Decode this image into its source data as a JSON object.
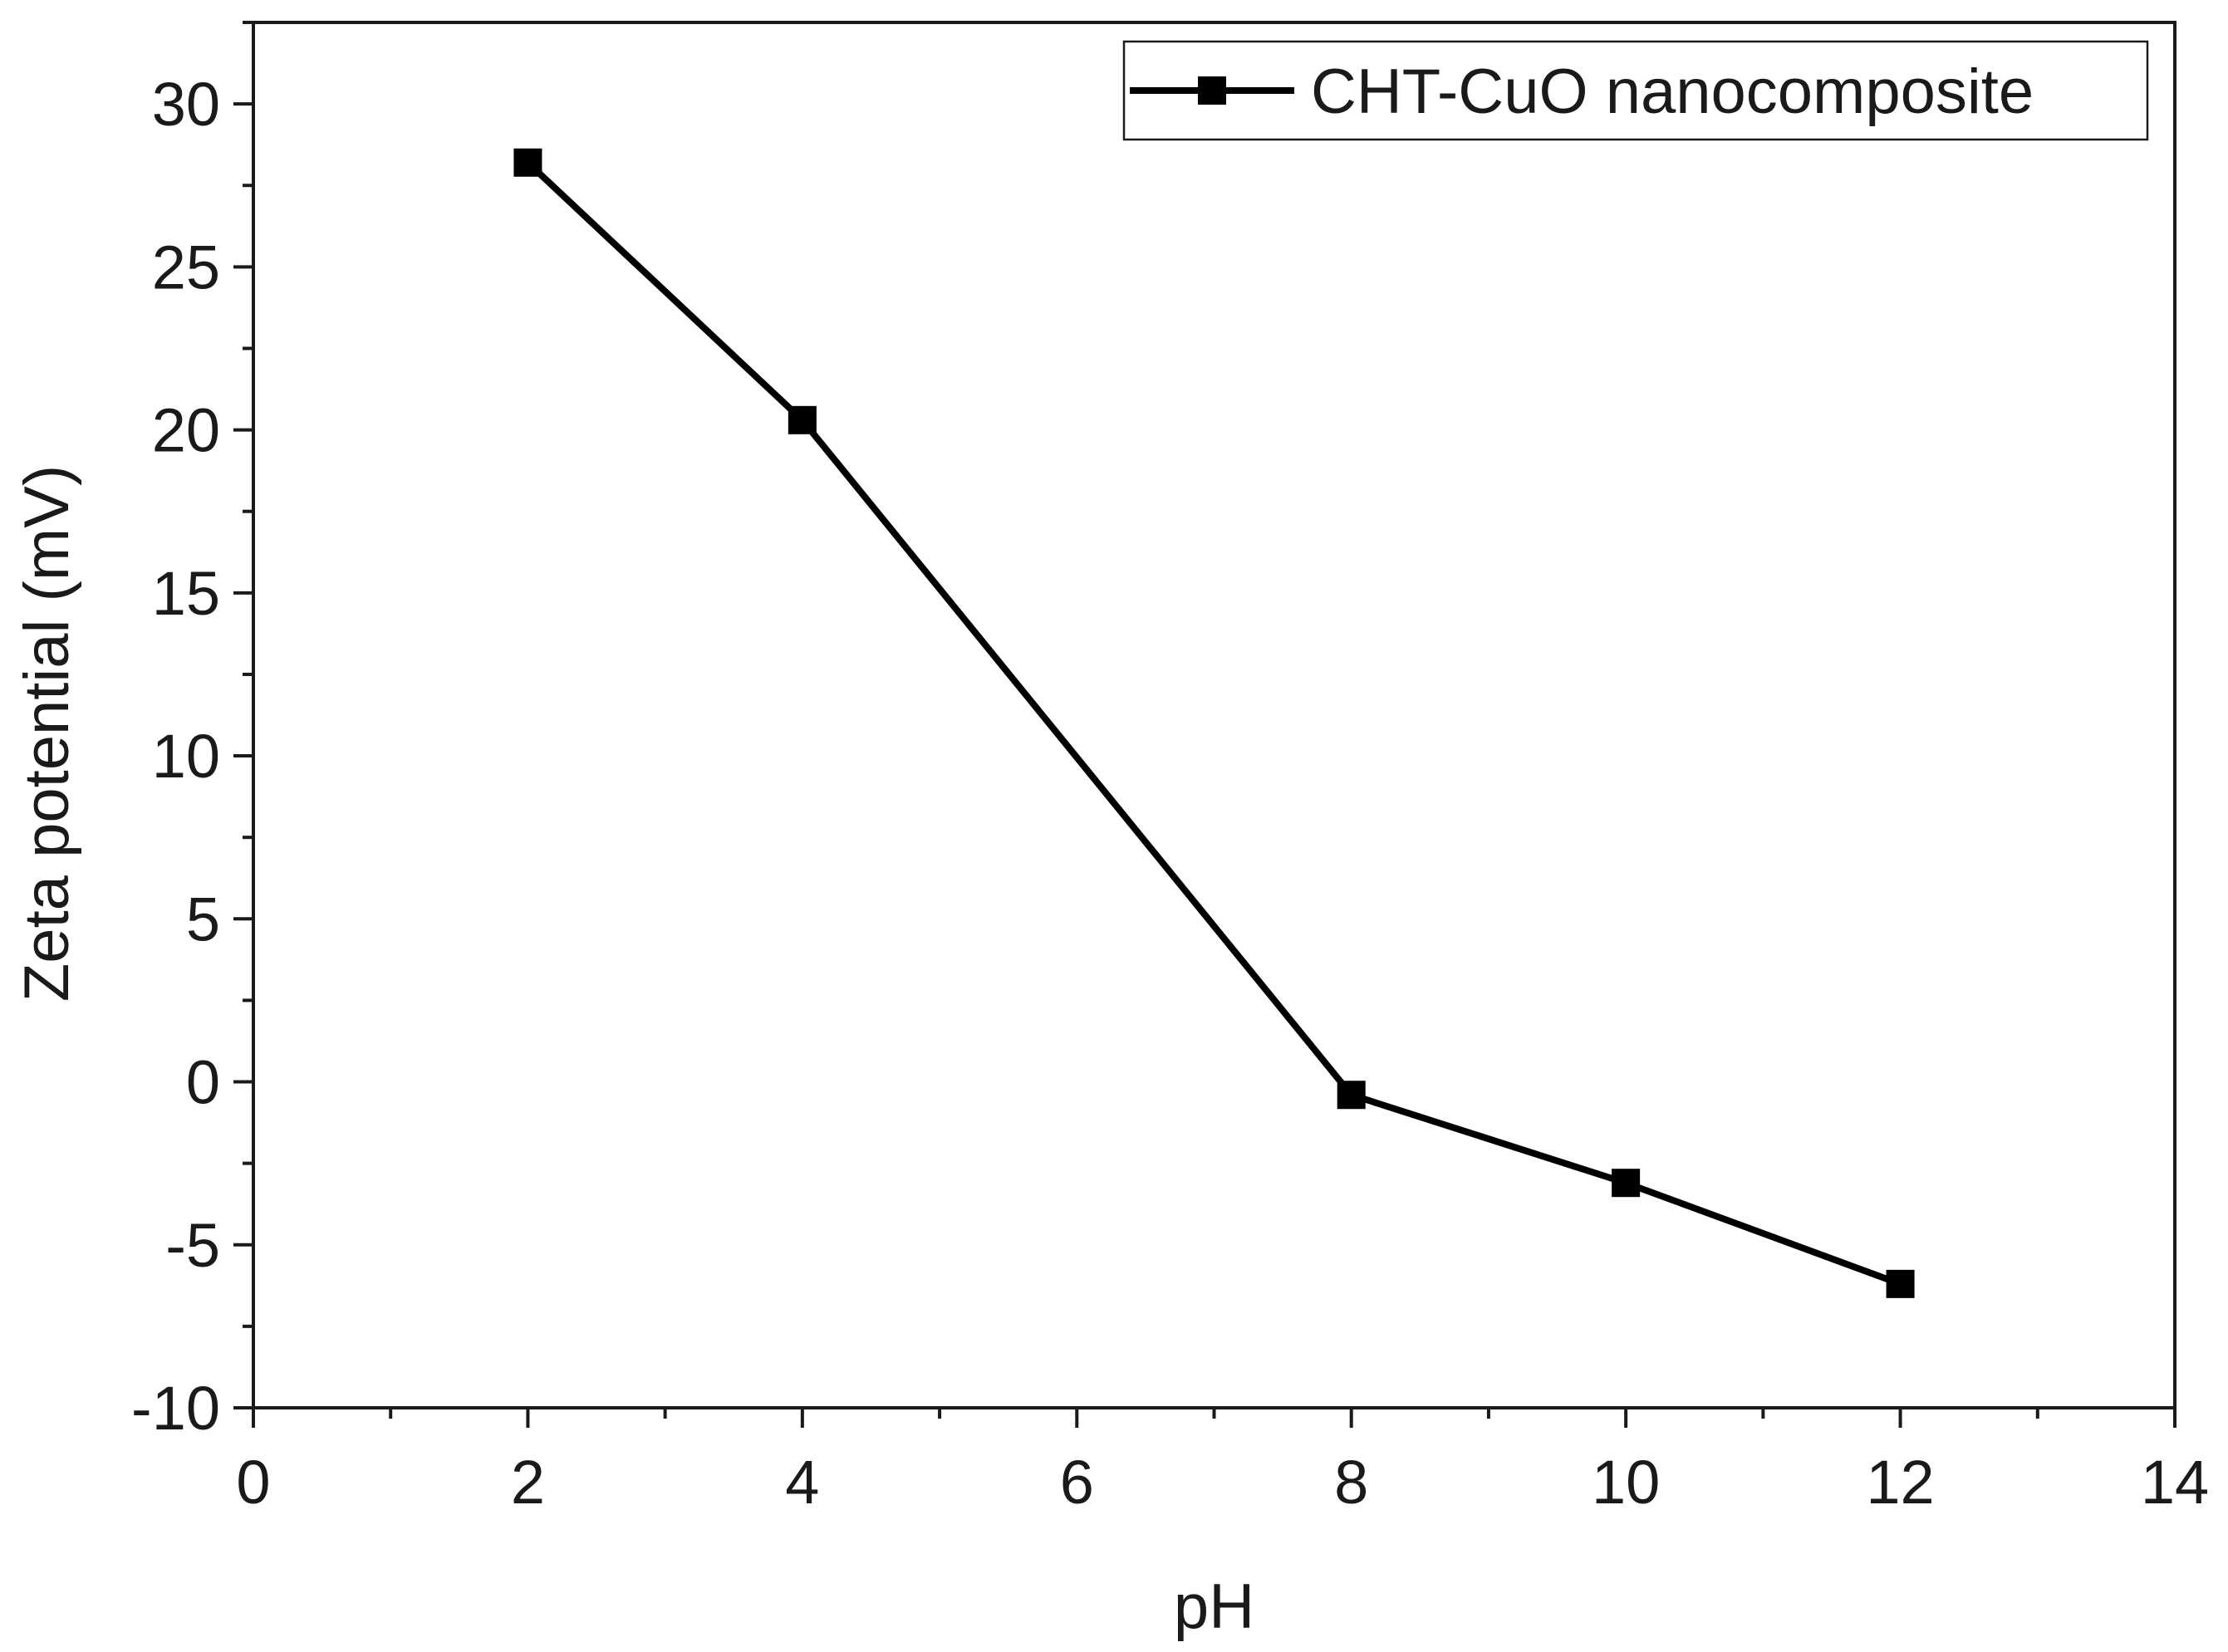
{
  "chart_data": {
    "type": "line",
    "title": "",
    "xlabel": "pH",
    "ylabel": "Zeta potential (mV)",
    "xlim": [
      0,
      14
    ],
    "ylim": [
      -10,
      32.5
    ],
    "x_major_ticks": [
      0,
      2,
      4,
      6,
      8,
      10,
      12,
      14
    ],
    "x_tick_labels": [
      "0",
      "2",
      "4",
      "6",
      "8",
      "10",
      "12",
      "14"
    ],
    "x_minor_step": 1,
    "y_major_ticks": [
      -10,
      -5,
      0,
      5,
      10,
      15,
      20,
      25,
      30
    ],
    "y_tick_labels": [
      "-10",
      "-5",
      "0",
      "5",
      "10",
      "15",
      "20",
      "25",
      "30"
    ],
    "y_minor_step": 2.5,
    "grid": false,
    "legend_position": "top-right",
    "series": [
      {
        "name": "CHT-CuO nanocomposite",
        "marker": "square",
        "color": "#000000",
        "x": [
          2,
          4,
          8,
          10,
          12
        ],
        "y": [
          28.2,
          20.3,
          -0.4,
          -3.1,
          -6.2
        ]
      }
    ]
  }
}
